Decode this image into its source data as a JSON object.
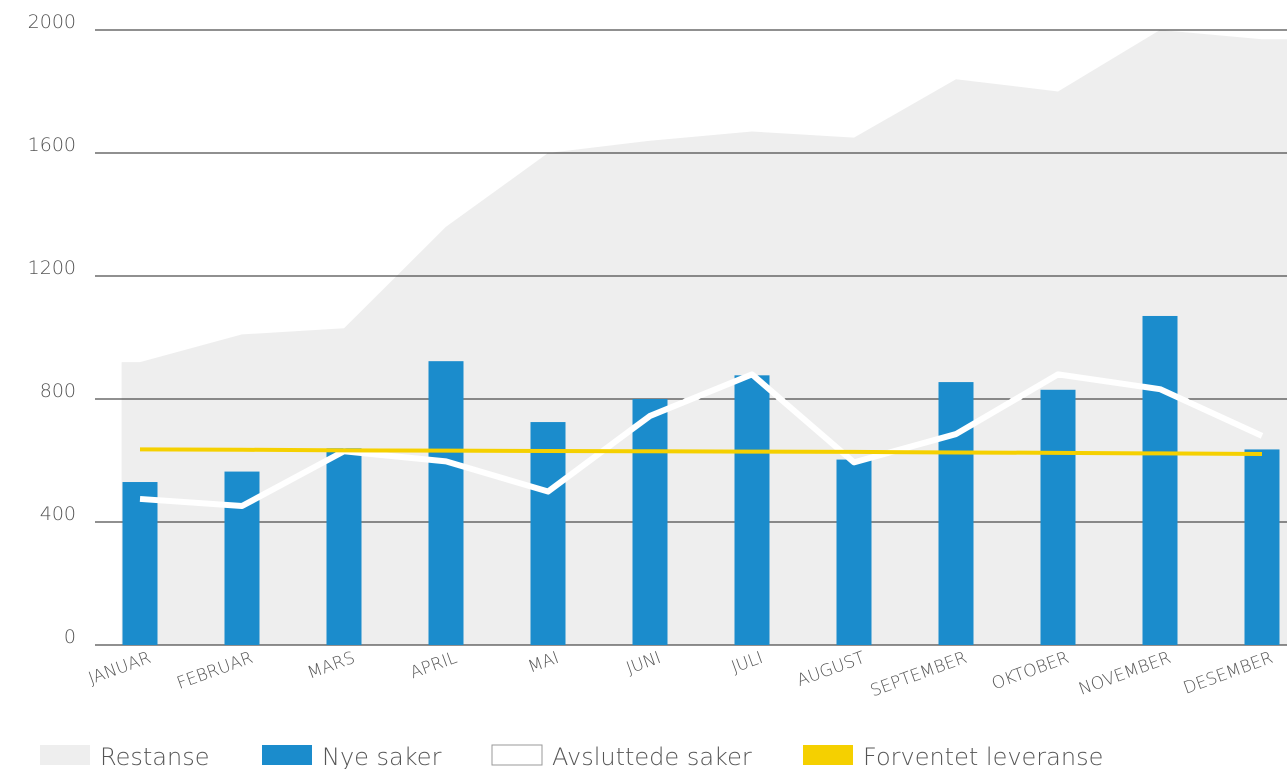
{
  "chart_data": {
    "type": "combo",
    "categories": [
      "JANUAR",
      "FEBRUAR",
      "MARS",
      "APRIL",
      "MAI",
      "JUNI",
      "JULI",
      "AUGUST",
      "SEPTEMBER",
      "OKTOBER",
      "NOVEMBER",
      "DESEMBER"
    ],
    "ylim": [
      0,
      2000
    ],
    "yticks": [
      0,
      400,
      800,
      1200,
      1600,
      2000
    ],
    "grid": true,
    "legend": "bottom",
    "series": [
      {
        "name": "Restanse",
        "type": "area",
        "color": "#eeeeee",
        "values": [
          920,
          1010,
          1030,
          1360,
          1600,
          1640,
          1670,
          1650,
          1840,
          1800,
          2000,
          1970
        ]
      },
      {
        "name": "Nye saker",
        "type": "bar",
        "color": "#1b8ccc",
        "values": [
          530,
          564,
          640,
          923,
          725,
          800,
          877,
          603,
          855,
          830,
          1070,
          636
        ]
      },
      {
        "name": "Avsluttede saker",
        "type": "line",
        "color": "#ffffff",
        "values": [
          475,
          452,
          630,
          597,
          499,
          745,
          880,
          594,
          686,
          880,
          832,
          680
        ]
      },
      {
        "name": "Forventet leveranse",
        "type": "line",
        "color": "#f5d000",
        "values": [
          636,
          635,
          633,
          632,
          631,
          630,
          629,
          628,
          626,
          625,
          623,
          621
        ]
      }
    ]
  }
}
